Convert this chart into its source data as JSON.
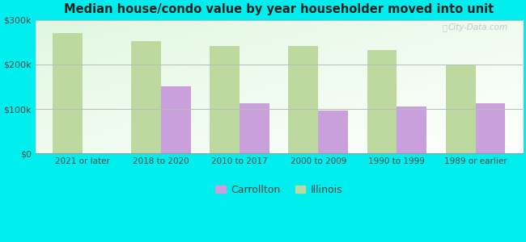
{
  "title": "Median house/condo value by year householder moved into unit",
  "categories": [
    "2021 or later",
    "2018 to 2020",
    "2010 to 2017",
    "2000 to 2009",
    "1990 to 1999",
    "1989 or earlier"
  ],
  "carrollton": [
    null,
    150000,
    112000,
    97000,
    105000,
    113000
  ],
  "illinois": [
    270000,
    252000,
    242000,
    242000,
    232000,
    200000
  ],
  "carrollton_color": "#c9a0dc",
  "illinois_color": "#bdd9a0",
  "background_color": "#00eeee",
  "ylim": [
    0,
    300000
  ],
  "yticks": [
    0,
    100000,
    200000,
    300000
  ],
  "ytick_labels": [
    "$0",
    "$100k",
    "$200k",
    "$300k"
  ],
  "bar_width": 0.38,
  "legend_labels": [
    "Carrollton",
    "Illinois"
  ],
  "watermark": "City-Data.com"
}
